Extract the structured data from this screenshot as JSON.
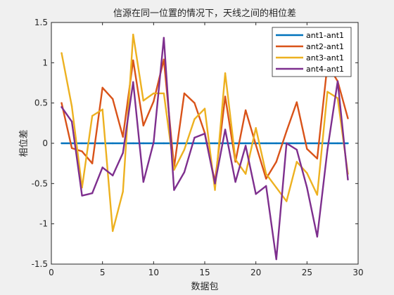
{
  "chart_data": {
    "type": "line",
    "title": "信源在同一位置的情况下，天线之间的相位差",
    "xlabel": "数据包",
    "ylabel": "相位差",
    "xlim": [
      0,
      30
    ],
    "ylim": [
      -1.5,
      1.5
    ],
    "xticks": [
      0,
      5,
      10,
      15,
      20,
      25,
      30
    ],
    "yticks": [
      -1.5,
      -1,
      -0.5,
      0,
      0.5,
      1,
      1.5
    ],
    "xtick_labels": [
      "0",
      "5",
      "10",
      "15",
      "20",
      "25",
      "30"
    ],
    "ytick_labels": [
      "-1.5",
      "-1",
      "-0.5",
      "0",
      "0.5",
      "1",
      "1.5"
    ],
    "legend_position": "top-right",
    "grid": false,
    "x": [
      1,
      2,
      3,
      4,
      5,
      6,
      7,
      8,
      9,
      10,
      11,
      12,
      13,
      14,
      15,
      16,
      17,
      18,
      19,
      20,
      21,
      22,
      23,
      24,
      25,
      26,
      27,
      28,
      29
    ],
    "series": [
      {
        "name": "ant1-ant1",
        "color": "#0072BD",
        "values": [
          0,
          0,
          0,
          0,
          0,
          0,
          0,
          0,
          0,
          0,
          0,
          0,
          0,
          0,
          0,
          0,
          0,
          0,
          0,
          0,
          0,
          0,
          0,
          0,
          0,
          0,
          0,
          0,
          0
        ]
      },
      {
        "name": "ant2-ant1",
        "color": "#D95319",
        "values": [
          0.5,
          -0.06,
          -0.1,
          -0.25,
          0.69,
          0.55,
          0.08,
          1.03,
          0.22,
          0.52,
          1.04,
          -0.3,
          0.62,
          0.5,
          0.13,
          -0.48,
          0.58,
          -0.23,
          0.41,
          -0.02,
          -0.44,
          -0.23,
          0.15,
          0.51,
          -0.07,
          -0.19,
          0.98,
          0.77,
          0.31
        ]
      },
      {
        "name": "ant3-ant1",
        "color": "#EDB120",
        "values": [
          1.12,
          0.46,
          -0.55,
          0.34,
          0.42,
          -1.09,
          -0.6,
          1.35,
          0.53,
          0.62,
          0.62,
          -0.33,
          -0.08,
          0.3,
          0.43,
          -0.58,
          0.87,
          -0.2,
          -0.38,
          0.19,
          -0.38,
          -0.55,
          -0.72,
          -0.23,
          -0.37,
          -0.64,
          0.64,
          0.56,
          -0.38
        ]
      },
      {
        "name": "ant4-ant1",
        "color": "#7E2F8E",
        "values": [
          0.45,
          0.27,
          -0.65,
          -0.62,
          -0.3,
          -0.4,
          -0.12,
          0.76,
          -0.48,
          0.01,
          1.31,
          -0.58,
          -0.36,
          0.07,
          0.12,
          -0.5,
          0.17,
          -0.48,
          -0.03,
          -0.63,
          -0.53,
          -1.44,
          0.0,
          -0.08,
          -0.55,
          -1.16,
          -0.08,
          0.77,
          -0.45
        ]
      }
    ]
  }
}
